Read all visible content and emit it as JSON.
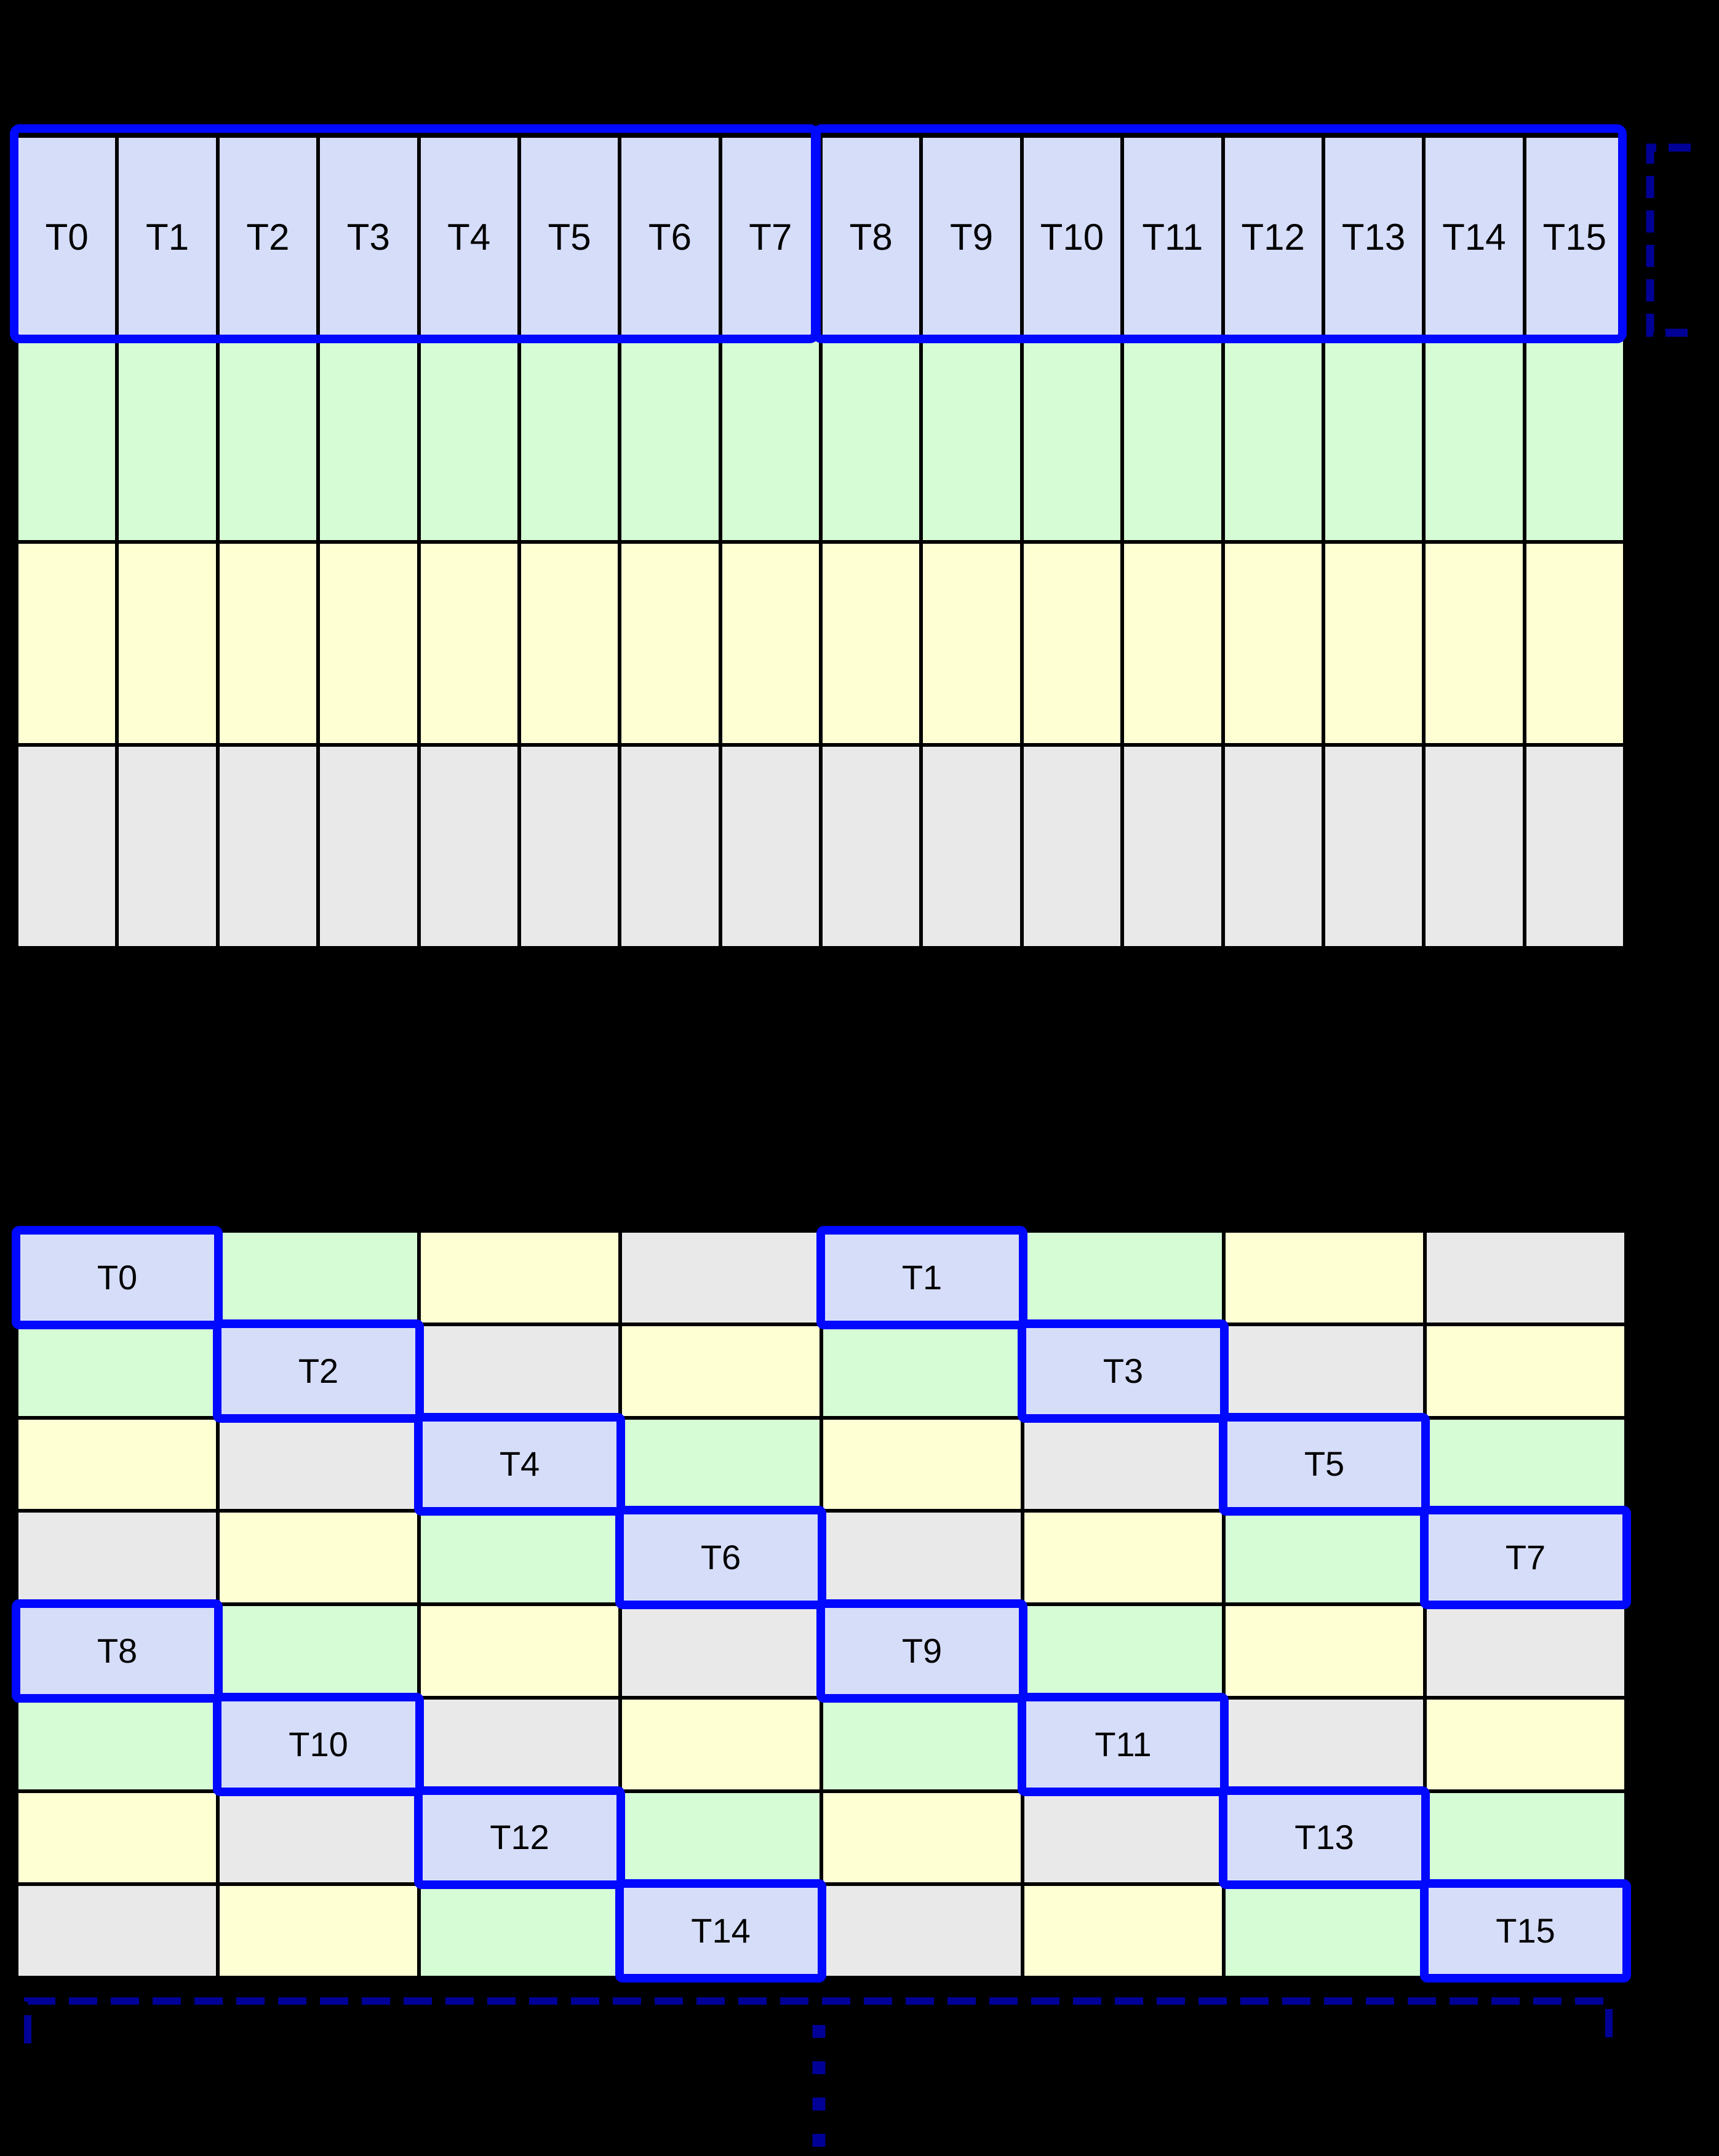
{
  "palette": {
    "background": "#000000",
    "grid_line": "#000000",
    "lavender": "#d6ddf9",
    "green": "#d5fcd5",
    "yellow": "#ffffd4",
    "gray": "#e9e9e9",
    "highlight_border": "#0008ff",
    "bracket": "#000096",
    "label_color": "#000000"
  },
  "grid1": {
    "columns": 16,
    "thread_labels": [
      "T0",
      "T1",
      "T2",
      "T3",
      "T4",
      "T5",
      "T6",
      "T7",
      "T8",
      "T9",
      "T10",
      "T11",
      "T12",
      "T13",
      "T14",
      "T15"
    ],
    "row_fills": [
      "lavender",
      "green",
      "yellow",
      "gray"
    ],
    "transaction_groups": [
      {
        "first": "T0",
        "last": "T7"
      },
      {
        "first": "T8",
        "last": "T15"
      }
    ]
  },
  "grid2": {
    "columns": 8,
    "rows": [
      [
        "lavender",
        "green",
        "yellow",
        "gray",
        "lavender",
        "green",
        "yellow",
        "gray"
      ],
      [
        "green",
        "lavender",
        "gray",
        "yellow",
        "green",
        "lavender",
        "gray",
        "yellow"
      ],
      [
        "yellow",
        "gray",
        "lavender",
        "green",
        "yellow",
        "gray",
        "lavender",
        "green"
      ],
      [
        "gray",
        "yellow",
        "green",
        "lavender",
        "gray",
        "yellow",
        "green",
        "lavender"
      ],
      [
        "lavender",
        "green",
        "yellow",
        "gray",
        "lavender",
        "green",
        "yellow",
        "gray"
      ],
      [
        "green",
        "lavender",
        "gray",
        "yellow",
        "green",
        "lavender",
        "gray",
        "yellow"
      ],
      [
        "yellow",
        "gray",
        "lavender",
        "green",
        "yellow",
        "gray",
        "lavender",
        "green"
      ],
      [
        "gray",
        "yellow",
        "green",
        "lavender",
        "gray",
        "yellow",
        "green",
        "lavender"
      ]
    ],
    "highlights": [
      {
        "row": 0,
        "col": 0,
        "label": "T0"
      },
      {
        "row": 0,
        "col": 4,
        "label": "T1"
      },
      {
        "row": 1,
        "col": 1,
        "label": "T2"
      },
      {
        "row": 1,
        "col": 5,
        "label": "T3"
      },
      {
        "row": 2,
        "col": 2,
        "label": "T4"
      },
      {
        "row": 2,
        "col": 6,
        "label": "T5"
      },
      {
        "row": 3,
        "col": 3,
        "label": "T6"
      },
      {
        "row": 3,
        "col": 7,
        "label": "T7"
      },
      {
        "row": 4,
        "col": 0,
        "label": "T8"
      },
      {
        "row": 4,
        "col": 4,
        "label": "T9"
      },
      {
        "row": 5,
        "col": 1,
        "label": "T10"
      },
      {
        "row": 5,
        "col": 5,
        "label": "T11"
      },
      {
        "row": 6,
        "col": 2,
        "label": "T12"
      },
      {
        "row": 6,
        "col": 6,
        "label": "T13"
      },
      {
        "row": 7,
        "col": 3,
        "label": "T14"
      },
      {
        "row": 7,
        "col": 7,
        "label": "T15"
      }
    ]
  }
}
